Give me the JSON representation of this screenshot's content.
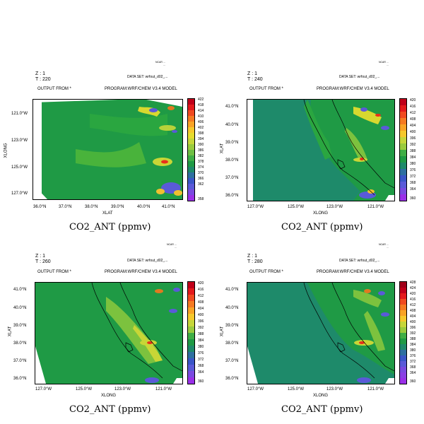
{
  "panels": [
    {
      "z_label": "Z : 1",
      "t_label": "T : 220",
      "output_from": "OUTPUT FROM *",
      "program": "PROGRAM:WRF/CHEM V3.4 MODEL",
      "data_set": "DATA SET: wrfout_d02_...",
      "title": "CO2_ANT (ppmv)",
      "x_axis_label": "XLAT",
      "y_axis_label": "XLONG",
      "x_ticks": [
        "36.0°N",
        "37.0°N",
        "38.0°N",
        "39.0°N",
        "40.0°N",
        "41.0°N"
      ],
      "y_ticks": [
        "121.0°W",
        "123.0°W",
        "125.0°W",
        "127.0°W"
      ],
      "colorbar_labels": [
        "422",
        "418",
        "414",
        "410",
        "406",
        "402",
        "398",
        "394",
        "390",
        "386",
        "382",
        "378",
        "374",
        "370",
        "366",
        "362",
        "358"
      ]
    },
    {
      "z_label": "Z : 1",
      "t_label": "T : 240",
      "output_from": "OUTPUT FROM *",
      "program": "PROGRAM:WRF/CHEM V3.4 MODEL",
      "data_set": "DATA SET: wrfout_d02_...",
      "title": "CO2_ANT (ppmv)",
      "x_axis_label": "XLONG",
      "y_axis_label": "XLAT",
      "x_ticks": [
        "127.0°W",
        "125.0°W",
        "123.0°W",
        "121.0°W"
      ],
      "y_ticks": [
        "41.0°N",
        "40.0°N",
        "39.0°N",
        "38.0°N",
        "37.0°N",
        "36.0°N"
      ],
      "colorbar_labels": [
        "420",
        "416",
        "412",
        "408",
        "404",
        "400",
        "396",
        "392",
        "388",
        "384",
        "380",
        "376",
        "372",
        "368",
        "364",
        "360"
      ]
    },
    {
      "z_label": "Z : 1",
      "t_label": "T : 260",
      "output_from": "OUTPUT FROM *",
      "program": "PROGRAM:WRF/CHEM V3.4 MODEL",
      "data_set": "DATA SET: wrfout_d02_...",
      "title": "CO2_ANT (ppmv)",
      "x_axis_label": "XLONG",
      "y_axis_label": "XLAT",
      "x_ticks": [
        "127.0°W",
        "125.0°W",
        "123.0°W",
        "121.0°W"
      ],
      "y_ticks": [
        "41.0°N",
        "40.0°N",
        "39.0°N",
        "38.0°N",
        "37.0°N",
        "36.0°N"
      ],
      "colorbar_labels": [
        "420",
        "416",
        "412",
        "408",
        "404",
        "400",
        "396",
        "392",
        "388",
        "384",
        "380",
        "376",
        "372",
        "368",
        "364",
        "360"
      ]
    },
    {
      "z_label": "Z : 1",
      "t_label": "T : 280",
      "output_from": "OUTPUT FROM *",
      "program": "PROGRAM:WRF/CHEM V3.4 MODEL",
      "data_set": "DATA SET: wrfout_d02_...",
      "title": "CO2_ANT (ppmv)",
      "x_axis_label": "XLONG",
      "y_axis_label": "XLAT",
      "x_ticks": [
        "127.0°W",
        "125.0°W",
        "123.0°W",
        "121.0°W"
      ],
      "y_ticks": [
        "41.0°N",
        "40.0°N",
        "39.0°N",
        "38.0°N",
        "37.0°N",
        "36.0°N"
      ],
      "colorbar_labels": [
        "428",
        "424",
        "420",
        "416",
        "412",
        "408",
        "404",
        "400",
        "396",
        "392",
        "388",
        "384",
        "380",
        "376",
        "372",
        "368",
        "364",
        "360"
      ]
    }
  ],
  "colors": {
    "field_base": "#1f9a45",
    "field_ocean_dark": "#1e8a6a",
    "field_light": "#7cc23e",
    "field_yellow": "#d7d82f",
    "hotspot": "#e8301b",
    "low_blue": "#5a5ad8"
  }
}
